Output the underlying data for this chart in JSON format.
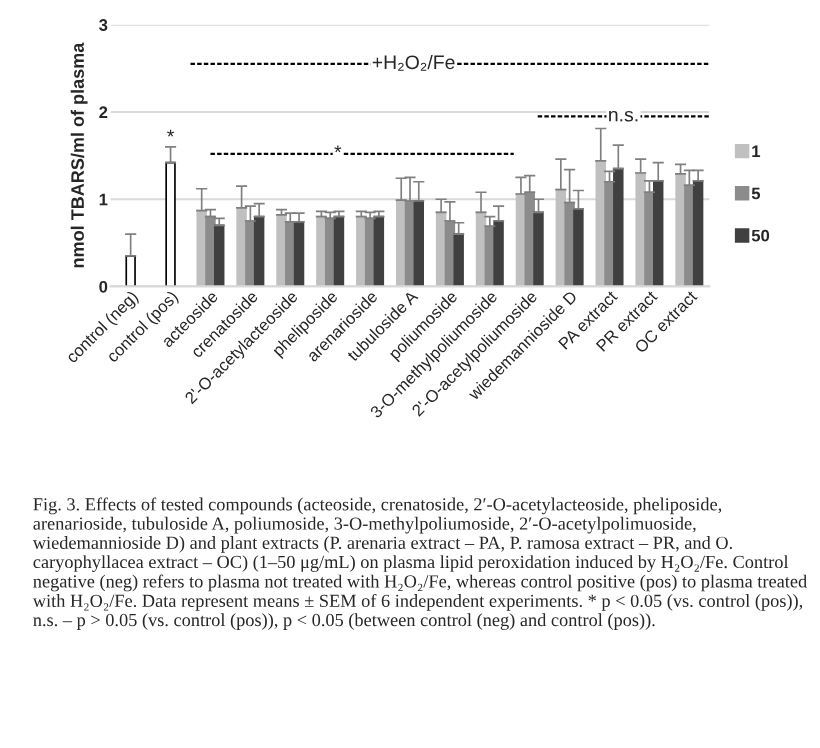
{
  "chart_data": {
    "type": "bar",
    "ylabel": "nmol TBARS/ml of plasma",
    "categories": [
      "control (neg)",
      "control (pos)",
      "acteoside",
      "crenatoside",
      "2'-O-acetylacteoside",
      "pheliposide",
      "arenarioside",
      "tubuloside A",
      "poliumoside",
      "3-O-methylpoliumoside",
      "2'-O-acetylpoliumoside",
      "wiedemannioside D",
      "PA extract",
      "PR extract",
      "OC extract"
    ],
    "series": [
      {
        "color": "#ffffff",
        "values": [
          0.35,
          1.42,
          null,
          null,
          null,
          null,
          null,
          null,
          null,
          null,
          null,
          null,
          null,
          null,
          null
        ],
        "errors": [
          [
            0.35,
            0.6
          ],
          [
            1.42,
            1.6
          ],
          null,
          null,
          null,
          null,
          null,
          null,
          null,
          null,
          null,
          null,
          null,
          null,
          null
        ]
      },
      {
        "name": "1",
        "color": "#c0c0c0",
        "values": [
          null,
          null,
          0.87,
          0.9,
          0.82,
          0.8,
          0.8,
          0.99,
          0.85,
          0.85,
          1.06,
          1.11,
          1.44,
          1.3,
          1.29
        ],
        "errors": [
          null,
          null,
          [
            0.87,
            1.12
          ],
          [
            0.9,
            1.15
          ],
          [
            0.82,
            0.88
          ],
          [
            0.8,
            0.86
          ],
          [
            0.8,
            0.86
          ],
          [
            0.99,
            1.24
          ],
          [
            0.85,
            1.0
          ],
          [
            0.85,
            1.08
          ],
          [
            1.06,
            1.25
          ],
          [
            1.11,
            1.46
          ],
          [
            1.44,
            1.81
          ],
          [
            1.3,
            1.46
          ],
          [
            1.29,
            1.4
          ]
        ]
      },
      {
        "name": "5",
        "color": "#8c8c8c",
        "values": [
          null,
          null,
          0.8,
          0.75,
          0.74,
          0.78,
          0.78,
          0.98,
          0.75,
          0.69,
          1.08,
          0.96,
          1.2,
          1.08,
          1.16
        ],
        "errors": [
          null,
          null,
          [
            0.8,
            0.88
          ],
          [
            0.75,
            0.92
          ],
          [
            0.74,
            0.84
          ],
          [
            0.78,
            0.85
          ],
          [
            0.78,
            0.85
          ],
          [
            0.98,
            1.25
          ],
          [
            0.75,
            0.97
          ],
          [
            0.69,
            0.8
          ],
          [
            1.08,
            1.27
          ],
          [
            0.96,
            1.34
          ],
          [
            1.2,
            1.32
          ],
          [
            1.08,
            1.21
          ],
          [
            1.16,
            1.33
          ]
        ]
      },
      {
        "name": "50",
        "color": "#404040",
        "values": [
          null,
          null,
          0.7,
          0.8,
          0.74,
          0.8,
          0.8,
          0.98,
          0.6,
          0.75,
          0.85,
          0.89,
          1.35,
          1.21,
          1.21
        ],
        "errors": [
          null,
          null,
          [
            0.7,
            0.78
          ],
          [
            0.8,
            0.95
          ],
          [
            0.74,
            0.84
          ],
          [
            0.8,
            0.86
          ],
          [
            0.8,
            0.86
          ],
          [
            0.98,
            1.2
          ],
          [
            0.6,
            0.73
          ],
          [
            0.75,
            0.92
          ],
          [
            0.85,
            1.0
          ],
          [
            0.89,
            1.1
          ],
          [
            1.35,
            1.62
          ],
          [
            1.21,
            1.42
          ],
          [
            1.21,
            1.33
          ]
        ]
      }
    ],
    "ref_lines": [
      {
        "axis": "y",
        "value": 2.55,
        "label": "+H₂O₂/Fe",
        "color": "#000000",
        "line_style": "dashed"
      }
    ],
    "ylim": [
      0,
      3
    ],
    "yticks": [
      0,
      1,
      2,
      3
    ],
    "grid": "y",
    "legend": "right",
    "annotations": [
      {
        "text": "*",
        "x": "control (pos)",
        "y": 1.7
      },
      "*",
      "n.s.",
      "Fig. 3. Effects of tested compounds (acteoside, crenatoside, 2′-O-acetylacteoside, pheliposide, arenarioside, tubuloside A, poliumoside, 3-O-methylpoliumoside, 2′-O-acetylpolimuoside, wiedemannioside D) and plant extracts (P. arenaria extract – PA, P. ramosa extract – PR, and O. caryophyllacea extract – OC) (1–50 μg/mL) on plasma lipid peroxidation induced by H₂O₂/Fe. Control negative (neg) refers to plasma not treated with H₂O₂/Fe, whereas control positive (pos) to plasma treated with H₂O₂/Fe. Data represent means ± SEM of 6 independent experiments. * p < 0.05 (vs. control (pos)), n.s. – p > 0.05 (vs. control (pos)), p < 0.05 (between control (neg) and control (pos))."
    ]
  }
}
